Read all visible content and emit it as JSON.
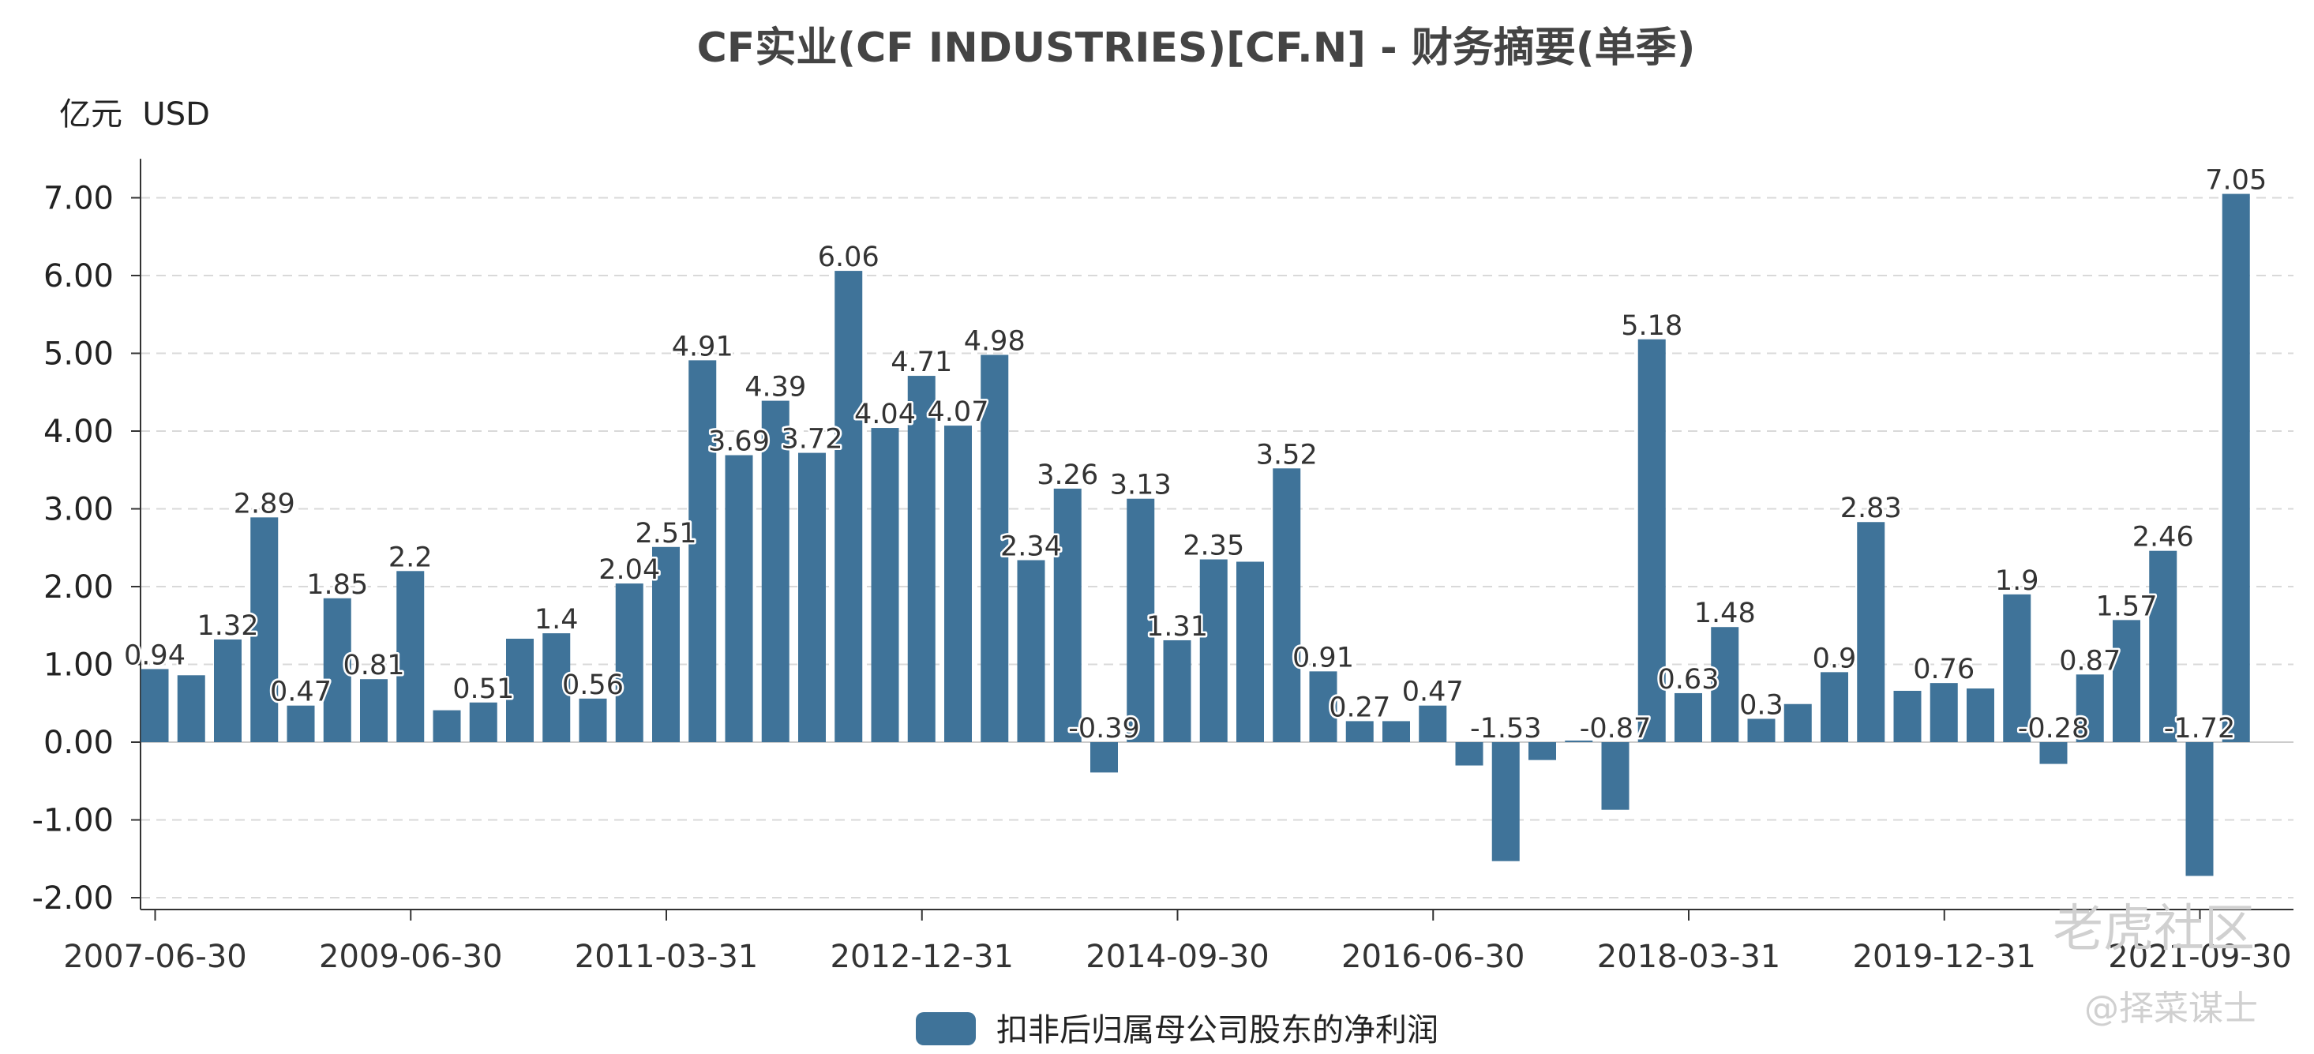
{
  "chart_data": {
    "type": "bar",
    "title": "CF实业(CF INDUSTRIES)[CF.N] - 财务摘要(单季)",
    "unit_label": "亿元  USD",
    "yticks": [
      "7.00",
      "6.00",
      "5.00",
      "4.00",
      "3.00",
      "2.00",
      "1.00",
      "0.00",
      "-1.00",
      "-2.00"
    ],
    "ylim": [
      -2.2,
      7.4
    ],
    "grid": "horizontal-dashed",
    "legend_position": "bottom-center",
    "xtick_labels": [
      "2007-06-30",
      "2009-06-30",
      "2011-03-31",
      "2012-12-31",
      "2014-09-30",
      "2016-06-30",
      "2018-03-31",
      "2019-12-31",
      "2021-09-30"
    ],
    "xtick_indices": [
      0,
      7,
      14,
      21,
      28,
      35,
      42,
      49,
      56
    ],
    "series": [
      {
        "name": "扣非后归属母公司股东的净利润",
        "color": "#3f7399",
        "values": [
          0.94,
          0.86,
          1.32,
          2.89,
          0.47,
          1.85,
          0.81,
          2.2,
          0.41,
          0.51,
          1.33,
          1.4,
          0.56,
          2.04,
          2.51,
          4.91,
          3.69,
          4.39,
          3.72,
          6.06,
          4.04,
          4.71,
          4.07,
          4.98,
          2.34,
          3.26,
          -0.39,
          3.13,
          1.31,
          2.35,
          2.32,
          3.52,
          0.91,
          0.27,
          0.27,
          0.47,
          -0.3,
          -1.53,
          -0.23,
          0.02,
          -0.87,
          5.18,
          0.63,
          1.48,
          0.3,
          0.49,
          0.9,
          2.83,
          0.66,
          0.76,
          0.69,
          1.9,
          -0.28,
          0.87,
          1.57,
          2.46,
          -1.72,
          7.05
        ]
      }
    ],
    "data_labels": [
      {
        "i": 0,
        "text": "0.94"
      },
      {
        "i": 2,
        "text": "1.32"
      },
      {
        "i": 3,
        "text": "2.89"
      },
      {
        "i": 4,
        "text": "0.47"
      },
      {
        "i": 5,
        "text": "1.85"
      },
      {
        "i": 6,
        "text": "0.81"
      },
      {
        "i": 7,
        "text": "2.2"
      },
      {
        "i": 9,
        "text": "0.51"
      },
      {
        "i": 11,
        "text": "1.4"
      },
      {
        "i": 12,
        "text": "0.56"
      },
      {
        "i": 13,
        "text": "2.04"
      },
      {
        "i": 14,
        "text": "2.51"
      },
      {
        "i": 15,
        "text": "4.91"
      },
      {
        "i": 16,
        "text": "3.69"
      },
      {
        "i": 17,
        "text": "4.39"
      },
      {
        "i": 18,
        "text": "3.72"
      },
      {
        "i": 19,
        "text": "6.06"
      },
      {
        "i": 20,
        "text": "4.04"
      },
      {
        "i": 21,
        "text": "4.71"
      },
      {
        "i": 22,
        "text": "4.07"
      },
      {
        "i": 23,
        "text": "4.98"
      },
      {
        "i": 24,
        "text": "2.34"
      },
      {
        "i": 25,
        "text": "3.26"
      },
      {
        "i": 26,
        "text": "-0.39"
      },
      {
        "i": 27,
        "text": "3.13"
      },
      {
        "i": 28,
        "text": "1.31"
      },
      {
        "i": 29,
        "text": "2.35"
      },
      {
        "i": 31,
        "text": "3.52"
      },
      {
        "i": 32,
        "text": "0.91"
      },
      {
        "i": 33,
        "text": "0.27"
      },
      {
        "i": 35,
        "text": "0.47"
      },
      {
        "i": 37,
        "text": "-1.53"
      },
      {
        "i": 40,
        "text": "-0.87"
      },
      {
        "i": 41,
        "text": "5.18"
      },
      {
        "i": 42,
        "text": "0.63"
      },
      {
        "i": 43,
        "text": "1.48"
      },
      {
        "i": 44,
        "text": "0.3"
      },
      {
        "i": 46,
        "text": "0.9"
      },
      {
        "i": 47,
        "text": "2.83"
      },
      {
        "i": 49,
        "text": "0.76"
      },
      {
        "i": 51,
        "text": "1.9"
      },
      {
        "i": 52,
        "text": "-0.28"
      },
      {
        "i": 53,
        "text": "0.87"
      },
      {
        "i": 54,
        "text": "1.57"
      },
      {
        "i": 55,
        "text": "2.46"
      },
      {
        "i": 56,
        "text": "-1.72"
      },
      {
        "i": 57,
        "text": "7.05"
      }
    ]
  },
  "watermark": {
    "main": "老虎社区",
    "sub": "@择菜谋士"
  }
}
